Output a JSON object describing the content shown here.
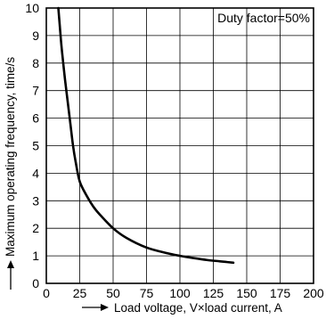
{
  "chart_data": {
    "type": "line",
    "xlabel": "Load voltage, V×load current, A",
    "ylabel": "Maximum operating frequency, time/s",
    "annotation": "Duty factor=50%",
    "xlim": [
      0,
      200
    ],
    "ylim": [
      0,
      10
    ],
    "x_ticks": [
      0,
      25,
      50,
      75,
      100,
      125,
      150,
      175,
      200
    ],
    "y_ticks": [
      0,
      1,
      2,
      3,
      4,
      5,
      6,
      7,
      8,
      9,
      10
    ],
    "grid": true,
    "series": [
      {
        "x": [
          9,
          10,
          11,
          12,
          14,
          16,
          18,
          20,
          22,
          25,
          30,
          35,
          40,
          50,
          60,
          75,
          90,
          100,
          110,
          120,
          130,
          140
        ],
        "y": [
          10,
          9.4,
          8.8,
          8.3,
          7.4,
          6.6,
          5.8,
          5.0,
          4.4,
          3.7,
          3.2,
          2.8,
          2.5,
          2.0,
          1.65,
          1.3,
          1.1,
          1.0,
          0.92,
          0.85,
          0.8,
          0.75
        ]
      }
    ]
  }
}
